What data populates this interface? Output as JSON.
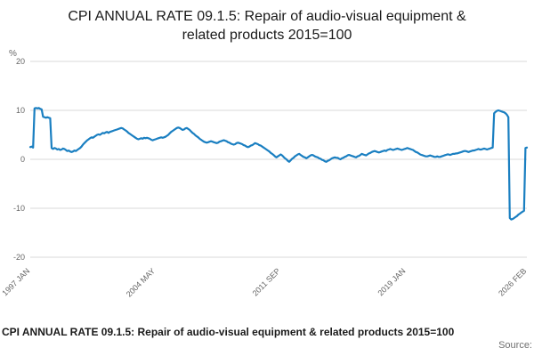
{
  "title": "CPI ANNUAL RATE 09.1.5: Repair of audio-visual equipment & related products 2015=100",
  "footer": {
    "caption": "CPI ANNUAL RATE 09.1.5: Repair of audio-visual equipment & related products 2015=100",
    "source_label": "Source:"
  },
  "chart_data": {
    "type": "line",
    "title": "CPI ANNUAL RATE 09.1.5: Repair of audio-visual equipment & related products 2015=100",
    "xlabel": "",
    "ylabel": "%",
    "ylim": [
      -20,
      20
    ],
    "yticks": [
      20,
      10,
      0,
      -10,
      -20
    ],
    "grid": true,
    "line_color": "#1a7fc1",
    "grid_color": "#d9d9d9",
    "tick_label_color": "#666666",
    "x_start": "1997-01",
    "x_frequency": "monthly",
    "xtick_labels": [
      "1997 JAN",
      "2004 MAY",
      "2011 SEP",
      "2019 JAN",
      "2026 FEB"
    ],
    "xtick_month_indices": [
      0,
      88,
      176,
      264,
      349
    ],
    "values": [
      2.5,
      2.6,
      2.4,
      10.4,
      10.5,
      10.4,
      10.5,
      10.3,
      10.2,
      8.7,
      8.6,
      8.5,
      8.6,
      8.5,
      8.4,
      2.3,
      2.1,
      2.3,
      2.2,
      2.0,
      2.1,
      1.9,
      2.0,
      2.2,
      2.1,
      1.9,
      1.7,
      1.8,
      1.6,
      1.5,
      1.6,
      1.8,
      1.7,
      1.9,
      2.1,
      2.3,
      2.6,
      3.0,
      3.3,
      3.6,
      3.9,
      4.1,
      4.3,
      4.5,
      4.4,
      4.6,
      4.8,
      5.0,
      5.1,
      5.0,
      5.2,
      5.4,
      5.3,
      5.5,
      5.6,
      5.4,
      5.6,
      5.7,
      5.8,
      5.9,
      6.0,
      6.1,
      6.2,
      6.3,
      6.4,
      6.3,
      6.1,
      5.9,
      5.7,
      5.4,
      5.2,
      5.0,
      4.8,
      4.6,
      4.4,
      4.2,
      4.1,
      4.2,
      4.3,
      4.2,
      4.4,
      4.3,
      4.4,
      4.3,
      4.2,
      4.0,
      3.9,
      4.0,
      4.1,
      4.2,
      4.3,
      4.4,
      4.5,
      4.4,
      4.5,
      4.6,
      4.8,
      5.0,
      5.3,
      5.6,
      5.8,
      6.0,
      6.2,
      6.4,
      6.5,
      6.4,
      6.2,
      6.0,
      6.1,
      6.3,
      6.4,
      6.2,
      6.0,
      5.7,
      5.4,
      5.2,
      4.9,
      4.7,
      4.5,
      4.2,
      4.0,
      3.8,
      3.6,
      3.5,
      3.4,
      3.5,
      3.6,
      3.7,
      3.6,
      3.5,
      3.4,
      3.3,
      3.4,
      3.6,
      3.7,
      3.8,
      3.9,
      3.8,
      3.7,
      3.5,
      3.4,
      3.2,
      3.1,
      3.0,
      3.1,
      3.3,
      3.4,
      3.3,
      3.2,
      3.1,
      2.9,
      2.8,
      2.6,
      2.5,
      2.6,
      2.8,
      2.9,
      3.1,
      3.3,
      3.2,
      3.1,
      2.9,
      2.8,
      2.6,
      2.4,
      2.2,
      2.0,
      1.8,
      1.6,
      1.3,
      1.1,
      0.9,
      0.6,
      0.4,
      0.6,
      0.8,
      1.0,
      0.8,
      0.5,
      0.2,
      0.0,
      -0.3,
      -0.5,
      -0.2,
      0.1,
      0.3,
      0.6,
      0.8,
      1.0,
      1.1,
      0.9,
      0.7,
      0.5,
      0.4,
      0.2,
      0.4,
      0.6,
      0.8,
      0.9,
      0.8,
      0.6,
      0.5,
      0.4,
      0.2,
      0.1,
      -0.1,
      -0.2,
      -0.4,
      -0.5,
      -0.3,
      -0.2,
      0.0,
      0.2,
      0.3,
      0.4,
      0.3,
      0.3,
      0.1,
      0.0,
      0.2,
      0.3,
      0.5,
      0.6,
      0.8,
      0.9,
      0.8,
      0.7,
      0.6,
      0.5,
      0.4,
      0.6,
      0.7,
      0.9,
      1.1,
      1.0,
      0.9,
      0.8,
      1.0,
      1.2,
      1.3,
      1.5,
      1.6,
      1.7,
      1.6,
      1.5,
      1.4,
      1.5,
      1.6,
      1.7,
      1.8,
      1.7,
      1.9,
      2.0,
      2.1,
      2.0,
      1.9,
      2.0,
      2.1,
      2.2,
      2.1,
      2.0,
      1.9,
      2.0,
      2.1,
      2.2,
      2.3,
      2.2,
      2.1,
      2.0,
      1.9,
      1.7,
      1.5,
      1.4,
      1.2,
      1.0,
      0.9,
      0.8,
      0.7,
      0.6,
      0.6,
      0.7,
      0.8,
      0.7,
      0.6,
      0.5,
      0.5,
      0.6,
      0.5,
      0.5,
      0.6,
      0.7,
      0.8,
      0.9,
      1.0,
      1.0,
      0.9,
      1.0,
      1.1,
      1.1,
      1.2,
      1.2,
      1.3,
      1.4,
      1.5,
      1.6,
      1.7,
      1.7,
      1.6,
      1.5,
      1.6,
      1.7,
      1.8,
      1.8,
      1.9,
      2.0,
      2.1,
      2.0,
      2.0,
      2.1,
      2.2,
      2.1,
      2.0,
      2.1,
      2.2,
      2.3,
      2.4,
      9.4,
      9.7,
      9.9,
      10.0,
      9.9,
      9.8,
      9.7,
      9.6,
      9.4,
      9.1,
      8.6,
      -12.0,
      -12.3,
      -12.2,
      -12.0,
      -11.8,
      -11.6,
      -11.3,
      -11.1,
      -10.9,
      -10.7,
      -10.5,
      2.3,
      2.4
    ]
  }
}
